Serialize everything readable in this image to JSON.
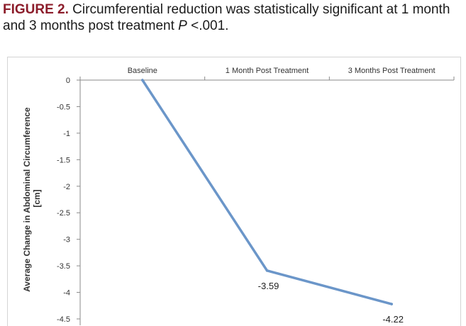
{
  "caption": {
    "label": "FIGURE 2.",
    "text": " Circumferential reduction was statistically significant at 1 month and 3 months post treatment ",
    "p_symbol": "P",
    "p_value": "<.001."
  },
  "chart_data": {
    "type": "line",
    "title": "",
    "categories": [
      "Baseline",
      "1 Month Post Treatment",
      "3 Months Post Treatment"
    ],
    "series": [
      {
        "values": [
          0,
          -3.59,
          -4.22
        ],
        "color": "#6b96c9"
      }
    ],
    "data_labels": [
      "",
      "-3.59",
      "-4.22"
    ],
    "ylabel": "Average Change in Abdominal Circumference [cm]",
    "ylabel_lines": [
      "Average Change in Abdominal Circumference",
      "[cm]"
    ],
    "ylim": [
      -4.5,
      0
    ],
    "yticks": [
      0,
      -0.5,
      -1,
      -1.5,
      -2,
      -2.5,
      -3,
      -3.5,
      -4,
      -4.5
    ],
    "ytick_labels": [
      "0",
      "-0.5",
      "-1",
      "-1.5",
      "-2",
      "-2.5",
      "-3",
      "-3.5",
      "-4",
      "-4.5"
    ],
    "xaxis_position": "top",
    "grid": false,
    "legend": "none"
  }
}
